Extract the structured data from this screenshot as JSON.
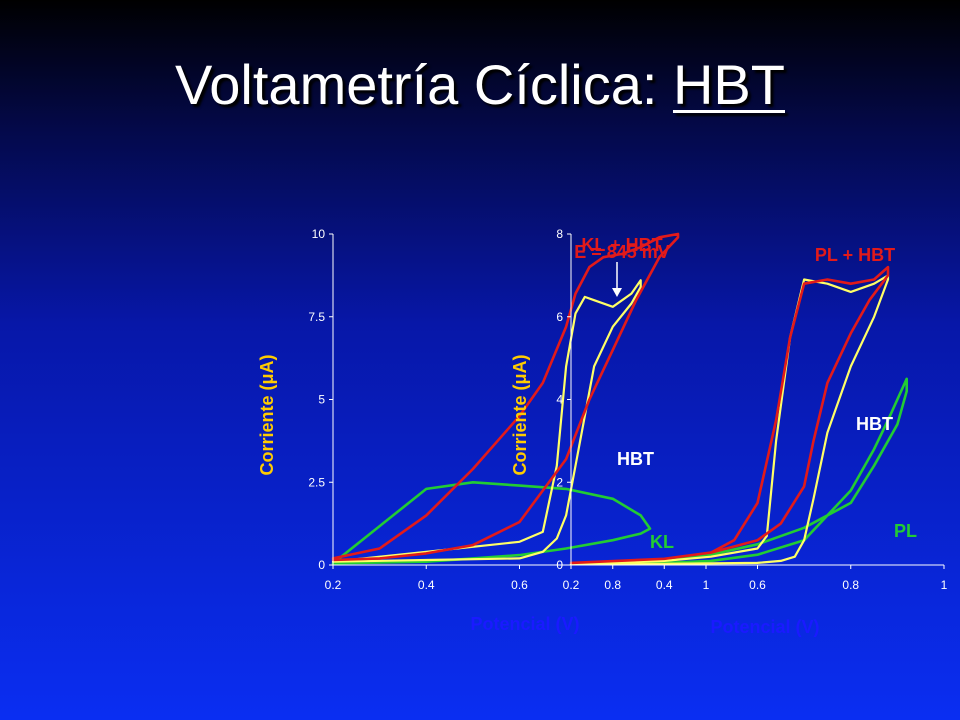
{
  "slide": {
    "title_main": "Voltametría Cíclica: ",
    "title_emph": "HBT"
  },
  "colors": {
    "red": "#e21a1a",
    "yellow": "#ffff66",
    "green": "#22cc33",
    "axis_title": "#ffcc00",
    "axis_title_blue": "#1a1aff"
  },
  "chart_data": [
    {
      "type": "line",
      "ylabel": "Corriente (μA)",
      "xlabel": "Potencial (V)",
      "xlim": [
        0.2,
        1.0
      ],
      "ylim": [
        0,
        10
      ],
      "xticks": [
        "0.2",
        "0.4",
        "0.6",
        "0.8",
        "1"
      ],
      "yticks": [
        "0",
        "2.5",
        "5",
        "7.5",
        "10"
      ],
      "series": [
        {
          "name": "KL + HBT",
          "color": "#e21a1a",
          "x": [
            0.2,
            0.3,
            0.4,
            0.5,
            0.6,
            0.65,
            0.7,
            0.72,
            0.75,
            0.78,
            0.82,
            0.86,
            0.9,
            0.94,
            0.94,
            0.9,
            0.85,
            0.8,
            0.75,
            0.7,
            0.6,
            0.5,
            0.4,
            0.3,
            0.2
          ],
          "y": [
            0.2,
            0.5,
            1.5,
            2.9,
            4.5,
            5.5,
            7.2,
            8.2,
            9.0,
            9.3,
            9.4,
            9.6,
            9.9,
            10.0,
            9.9,
            9.3,
            8.0,
            6.5,
            5.0,
            3.2,
            1.3,
            0.6,
            0.35,
            0.2,
            0.15
          ]
        },
        {
          "name": "HBT",
          "color": "#ffff66",
          "x": [
            0.2,
            0.4,
            0.6,
            0.65,
            0.68,
            0.7,
            0.72,
            0.74,
            0.76,
            0.8,
            0.84,
            0.86,
            0.86,
            0.84,
            0.8,
            0.76,
            0.72,
            0.7,
            0.68,
            0.65,
            0.6,
            0.4,
            0.2
          ],
          "y": [
            0.1,
            0.4,
            0.7,
            1.0,
            3.0,
            6.0,
            7.6,
            8.1,
            8.0,
            7.8,
            8.2,
            8.6,
            8.4,
            7.9,
            7.2,
            6.0,
            3.0,
            1.5,
            0.8,
            0.4,
            0.2,
            0.15,
            0.1
          ]
        },
        {
          "name": "KL",
          "color": "#22cc33",
          "x": [
            0.2,
            0.4,
            0.5,
            0.6,
            0.7,
            0.8,
            0.86,
            0.88,
            0.86,
            0.8,
            0.7,
            0.6,
            0.5,
            0.4,
            0.2
          ],
          "y": [
            0.05,
            0.1,
            0.2,
            0.3,
            0.5,
            0.75,
            0.95,
            1.1,
            1.5,
            2.0,
            2.3,
            2.4,
            2.5,
            2.3,
            0.05
          ]
        }
      ],
      "annotations": [
        {
          "text": "KL + HBT",
          "color": "#e21a1a"
        },
        {
          "text": "E = 845 mV",
          "color": "#e21a1a"
        },
        {
          "text": "HBT",
          "color": "#ffffff"
        },
        {
          "text": "KL",
          "color": "#22cc33"
        }
      ]
    },
    {
      "type": "line",
      "ylabel": "Corriente (μA)",
      "xlabel": "Potencial (V)",
      "xlim": [
        0.2,
        1.0
      ],
      "ylim": [
        0,
        8
      ],
      "xticks": [
        "0.2",
        "0.4",
        "0.6",
        "0.8",
        "1"
      ],
      "yticks": [
        "0",
        "2",
        "4",
        "6",
        "8"
      ],
      "series": [
        {
          "name": "PL + HBT",
          "color": "#e21a1a",
          "x": [
            0.2,
            0.4,
            0.5,
            0.55,
            0.6,
            0.64,
            0.67,
            0.7,
            0.75,
            0.8,
            0.85,
            0.88,
            0.88,
            0.84,
            0.8,
            0.75,
            0.72,
            0.7,
            0.65,
            0.6,
            0.5,
            0.4,
            0.2
          ],
          "y": [
            0.05,
            0.15,
            0.3,
            0.6,
            1.5,
            3.5,
            5.5,
            6.8,
            6.9,
            6.8,
            6.9,
            7.2,
            7.0,
            6.4,
            5.6,
            4.4,
            3.0,
            1.9,
            1.0,
            0.6,
            0.3,
            0.15,
            0.05
          ]
        },
        {
          "name": "HBT",
          "color": "#ffff66",
          "x": [
            0.2,
            0.4,
            0.5,
            0.6,
            0.62,
            0.64,
            0.67,
            0.7,
            0.75,
            0.8,
            0.85,
            0.88,
            0.88,
            0.85,
            0.8,
            0.75,
            0.72,
            0.7,
            0.68,
            0.65,
            0.6,
            0.4,
            0.2
          ],
          "y": [
            0.02,
            0.1,
            0.2,
            0.4,
            0.7,
            3.0,
            5.5,
            6.9,
            6.8,
            6.6,
            6.8,
            7.0,
            6.9,
            6.0,
            4.8,
            3.2,
            1.6,
            0.6,
            0.2,
            0.1,
            0.05,
            0.03,
            0.02
          ]
        },
        {
          "name": "PL",
          "color": "#22cc33",
          "x": [
            0.2,
            0.4,
            0.5,
            0.6,
            0.7,
            0.8,
            0.85,
            0.88,
            0.92,
            0.92,
            0.9,
            0.85,
            0.8,
            0.7,
            0.6,
            0.5,
            0.4,
            0.2
          ],
          "y": [
            0.02,
            0.05,
            0.1,
            0.25,
            0.6,
            1.8,
            2.8,
            3.5,
            4.5,
            4.2,
            3.4,
            2.4,
            1.5,
            0.9,
            0.5,
            0.25,
            0.1,
            0.02
          ]
        }
      ],
      "annotations": [
        {
          "text": "PL + HBT",
          "color": "#e21a1a"
        },
        {
          "text": "HBT",
          "color": "#ffffff"
        },
        {
          "text": "PL",
          "color": "#22cc33"
        }
      ]
    }
  ]
}
